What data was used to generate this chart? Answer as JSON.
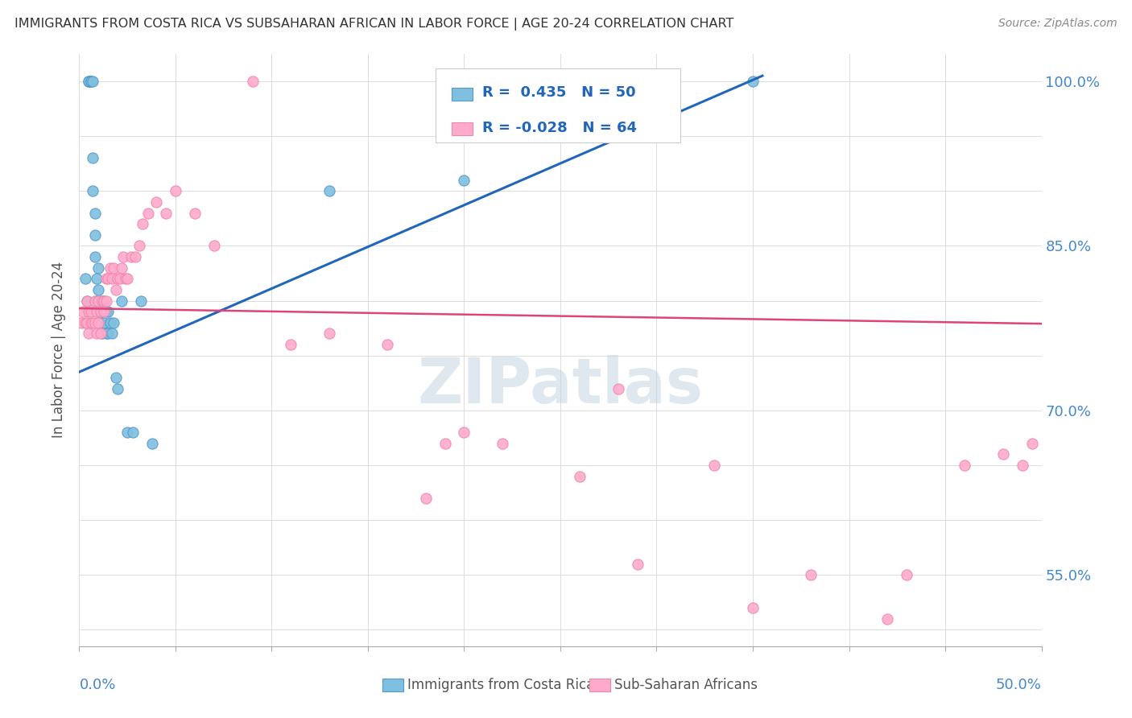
{
  "title": "IMMIGRANTS FROM COSTA RICA VS SUBSAHARAN AFRICAN IN LABOR FORCE | AGE 20-24 CORRELATION CHART",
  "source": "Source: ZipAtlas.com",
  "ylabel_label": "In Labor Force | Age 20-24",
  "legend_label_blue": "Immigrants from Costa Rica",
  "legend_label_pink": "Sub-Saharan Africans",
  "blue_color": "#7fbfdf",
  "blue_edge": "#5599cc",
  "pink_color": "#ffaacc",
  "pink_edge": "#ee88aa",
  "blue_line_color": "#2266bb",
  "pink_line_color": "#dd4477",
  "xlim": [
    0.0,
    0.5
  ],
  "ylim": [
    0.485,
    1.025
  ],
  "yticks": [
    0.5,
    0.55,
    0.6,
    0.65,
    0.7,
    0.75,
    0.8,
    0.85,
    0.9,
    0.95,
    1.0
  ],
  "xticks": [
    0.0,
    0.05,
    0.1,
    0.15,
    0.2,
    0.25,
    0.3,
    0.35,
    0.4,
    0.45,
    0.5
  ],
  "right_ytick_labels": [
    "",
    "55.0%",
    "",
    "70.0%",
    "",
    "85.0%",
    "",
    "100.0%"
  ],
  "right_ytick_vals": [
    0.5,
    0.55,
    0.6,
    0.7,
    0.75,
    0.85,
    0.9,
    1.0
  ],
  "blue_scatter_x": [
    0.003,
    0.004,
    0.005,
    0.005,
    0.006,
    0.006,
    0.007,
    0.007,
    0.007,
    0.008,
    0.008,
    0.008,
    0.009,
    0.009,
    0.01,
    0.01,
    0.01,
    0.011,
    0.011,
    0.012,
    0.012,
    0.013,
    0.013,
    0.014,
    0.014,
    0.015,
    0.015,
    0.016,
    0.017,
    0.018,
    0.019,
    0.02,
    0.022,
    0.025,
    0.028,
    0.032,
    0.038,
    0.13,
    0.2,
    0.35
  ],
  "blue_scatter_y": [
    0.82,
    0.8,
    1.0,
    1.0,
    1.0,
    1.0,
    1.0,
    0.93,
    0.9,
    0.88,
    0.86,
    0.84,
    0.82,
    0.8,
    0.83,
    0.81,
    0.79,
    0.8,
    0.78,
    0.79,
    0.77,
    0.8,
    0.78,
    0.79,
    0.77,
    0.79,
    0.77,
    0.78,
    0.77,
    0.78,
    0.73,
    0.72,
    0.8,
    0.68,
    0.68,
    0.8,
    0.67,
    0.9,
    0.91,
    1.0
  ],
  "pink_scatter_x": [
    0.001,
    0.002,
    0.003,
    0.004,
    0.004,
    0.005,
    0.005,
    0.006,
    0.006,
    0.007,
    0.008,
    0.008,
    0.009,
    0.009,
    0.01,
    0.01,
    0.011,
    0.011,
    0.012,
    0.013,
    0.013,
    0.014,
    0.014,
    0.015,
    0.016,
    0.017,
    0.018,
    0.019,
    0.02,
    0.021,
    0.022,
    0.023,
    0.024,
    0.025,
    0.027,
    0.029,
    0.031,
    0.033,
    0.036,
    0.04,
    0.045,
    0.05,
    0.06,
    0.07,
    0.09,
    0.11,
    0.13,
    0.16,
    0.19,
    0.22,
    0.26,
    0.29,
    0.33,
    0.38,
    0.43,
    0.48,
    0.49,
    0.495,
    0.18,
    0.2,
    0.28,
    0.35,
    0.42,
    0.46
  ],
  "pink_scatter_y": [
    0.78,
    0.79,
    0.78,
    0.78,
    0.8,
    0.79,
    0.77,
    0.79,
    0.78,
    0.78,
    0.8,
    0.78,
    0.79,
    0.77,
    0.8,
    0.78,
    0.79,
    0.77,
    0.8,
    0.79,
    0.8,
    0.82,
    0.8,
    0.82,
    0.83,
    0.82,
    0.83,
    0.81,
    0.82,
    0.82,
    0.83,
    0.84,
    0.82,
    0.82,
    0.84,
    0.84,
    0.85,
    0.87,
    0.88,
    0.89,
    0.88,
    0.9,
    0.88,
    0.85,
    1.0,
    0.76,
    0.77,
    0.76,
    0.67,
    0.67,
    0.64,
    0.56,
    0.65,
    0.55,
    0.55,
    0.66,
    0.65,
    0.67,
    0.62,
    0.68,
    0.72,
    0.52,
    0.51,
    0.65
  ],
  "blue_line_x0": 0.0,
  "blue_line_x1": 0.355,
  "blue_line_y0": 0.735,
  "blue_line_y1": 1.005,
  "pink_line_x0": 0.0,
  "pink_line_x1": 0.5,
  "pink_line_y0": 0.793,
  "pink_line_y1": 0.779,
  "watermark": "ZIPatlas",
  "grid_color": "#dddddd",
  "font_color_title": "#333333",
  "font_color_axis": "#4488cc"
}
